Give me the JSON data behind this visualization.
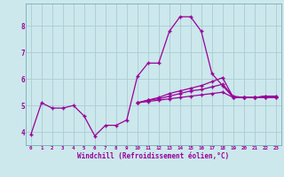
{
  "bg_color": "#cce8ec",
  "line_color": "#990099",
  "grid_color": "#a8cdd4",
  "xlabel": "Windchill (Refroidissement éolien,°C)",
  "tick_color": "#990099",
  "xmin": -0.5,
  "xmax": 23.5,
  "ymin": 3.5,
  "ymax": 8.85,
  "yticks": [
    4,
    5,
    6,
    7,
    8
  ],
  "xticks": [
    0,
    1,
    2,
    3,
    4,
    5,
    6,
    7,
    8,
    9,
    10,
    11,
    12,
    13,
    14,
    15,
    16,
    17,
    18,
    19,
    20,
    21,
    22,
    23
  ],
  "series": [
    [
      3.9,
      5.1,
      4.9,
      4.9,
      5.0,
      4.6,
      3.85,
      4.25,
      4.25,
      4.45,
      6.1,
      6.6,
      6.6,
      7.8,
      8.35,
      8.35,
      7.8,
      6.2,
      5.75,
      5.3,
      5.3,
      5.3,
      5.35,
      5.35
    ],
    [
      null,
      null,
      null,
      null,
      null,
      null,
      null,
      null,
      null,
      null,
      5.1,
      5.2,
      5.3,
      5.45,
      5.55,
      5.65,
      5.75,
      5.9,
      6.05,
      5.3,
      5.3,
      5.3,
      5.35,
      5.35
    ],
    [
      null,
      null,
      null,
      null,
      null,
      null,
      null,
      null,
      null,
      null,
      5.1,
      5.2,
      5.25,
      5.35,
      5.45,
      5.55,
      5.6,
      5.7,
      5.8,
      5.35,
      5.3,
      5.3,
      5.3,
      5.3
    ],
    [
      null,
      null,
      null,
      null,
      null,
      null,
      null,
      null,
      null,
      null,
      5.1,
      5.15,
      5.2,
      5.25,
      5.3,
      5.35,
      5.4,
      5.45,
      5.5,
      5.3,
      5.3,
      5.3,
      5.3,
      5.3
    ]
  ]
}
